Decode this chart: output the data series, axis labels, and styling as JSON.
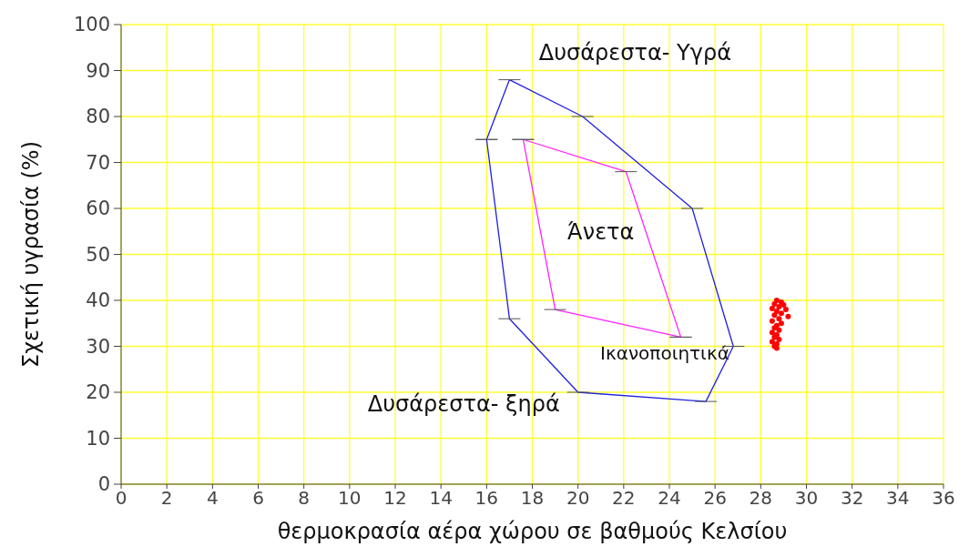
{
  "chart_data": {
    "type": "line",
    "xlabel": "θερμοκρασία αέρα χώρου σε βαθμούς Κελσίου",
    "ylabel": "Σχετική υγρασία (%)",
    "xlim": [
      0,
      36
    ],
    "xticks": [
      0,
      2,
      4,
      6,
      8,
      10,
      12,
      14,
      16,
      18,
      20,
      22,
      24,
      26,
      28,
      30,
      32,
      34,
      36
    ],
    "ylim": [
      0,
      100
    ],
    "yticks": [
      0,
      10,
      20,
      30,
      40,
      50,
      60,
      70,
      80,
      90,
      100
    ],
    "grid": true,
    "line_style": "solid",
    "series": [
      {
        "color": "#2020e0",
        "x": [
          16,
          17,
          20.2,
          25,
          26.8
        ],
        "values": [
          75,
          88,
          80,
          60,
          30
        ]
      },
      {
        "color": "#2020e0",
        "x": [
          16,
          17,
          20,
          25.6,
          26.8
        ],
        "values": [
          75,
          36,
          20,
          18,
          30
        ]
      },
      {
        "color": "#ff20ff",
        "x": [
          17.6,
          22.1,
          24.5
        ],
        "values": [
          75,
          68,
          32
        ]
      },
      {
        "color": "#ff20ff",
        "x": [
          17.6,
          19,
          24.5
        ],
        "values": [
          75,
          38,
          32
        ]
      },
      {
        "type": "scatter",
        "marker": "circle",
        "color": "#ff0000",
        "x": [
          28.7,
          28.9,
          28.6,
          29.0,
          28.8,
          28.5,
          29.1,
          28.7,
          28.9,
          28.6,
          29.2,
          28.8,
          28.5,
          28.9,
          28.7,
          28.6,
          28.8,
          28.5,
          28.7,
          28.6,
          28.8,
          28.5,
          28.7,
          28.6,
          28.7
        ],
        "values": [
          40,
          39.6,
          39.2,
          39,
          38.6,
          38.2,
          38,
          37.6,
          37.2,
          36.8,
          36.5,
          36,
          35.5,
          35,
          34.5,
          34,
          33.5,
          33,
          32.5,
          32,
          31.5,
          31,
          30.5,
          30,
          29.6
        ]
      }
    ],
    "annotations": [
      "Δυσάρεστα- Υγρά",
      "Άνετα",
      "Ικανοποιητικά",
      "Δυσάρεστα- ξηρά"
    ]
  }
}
